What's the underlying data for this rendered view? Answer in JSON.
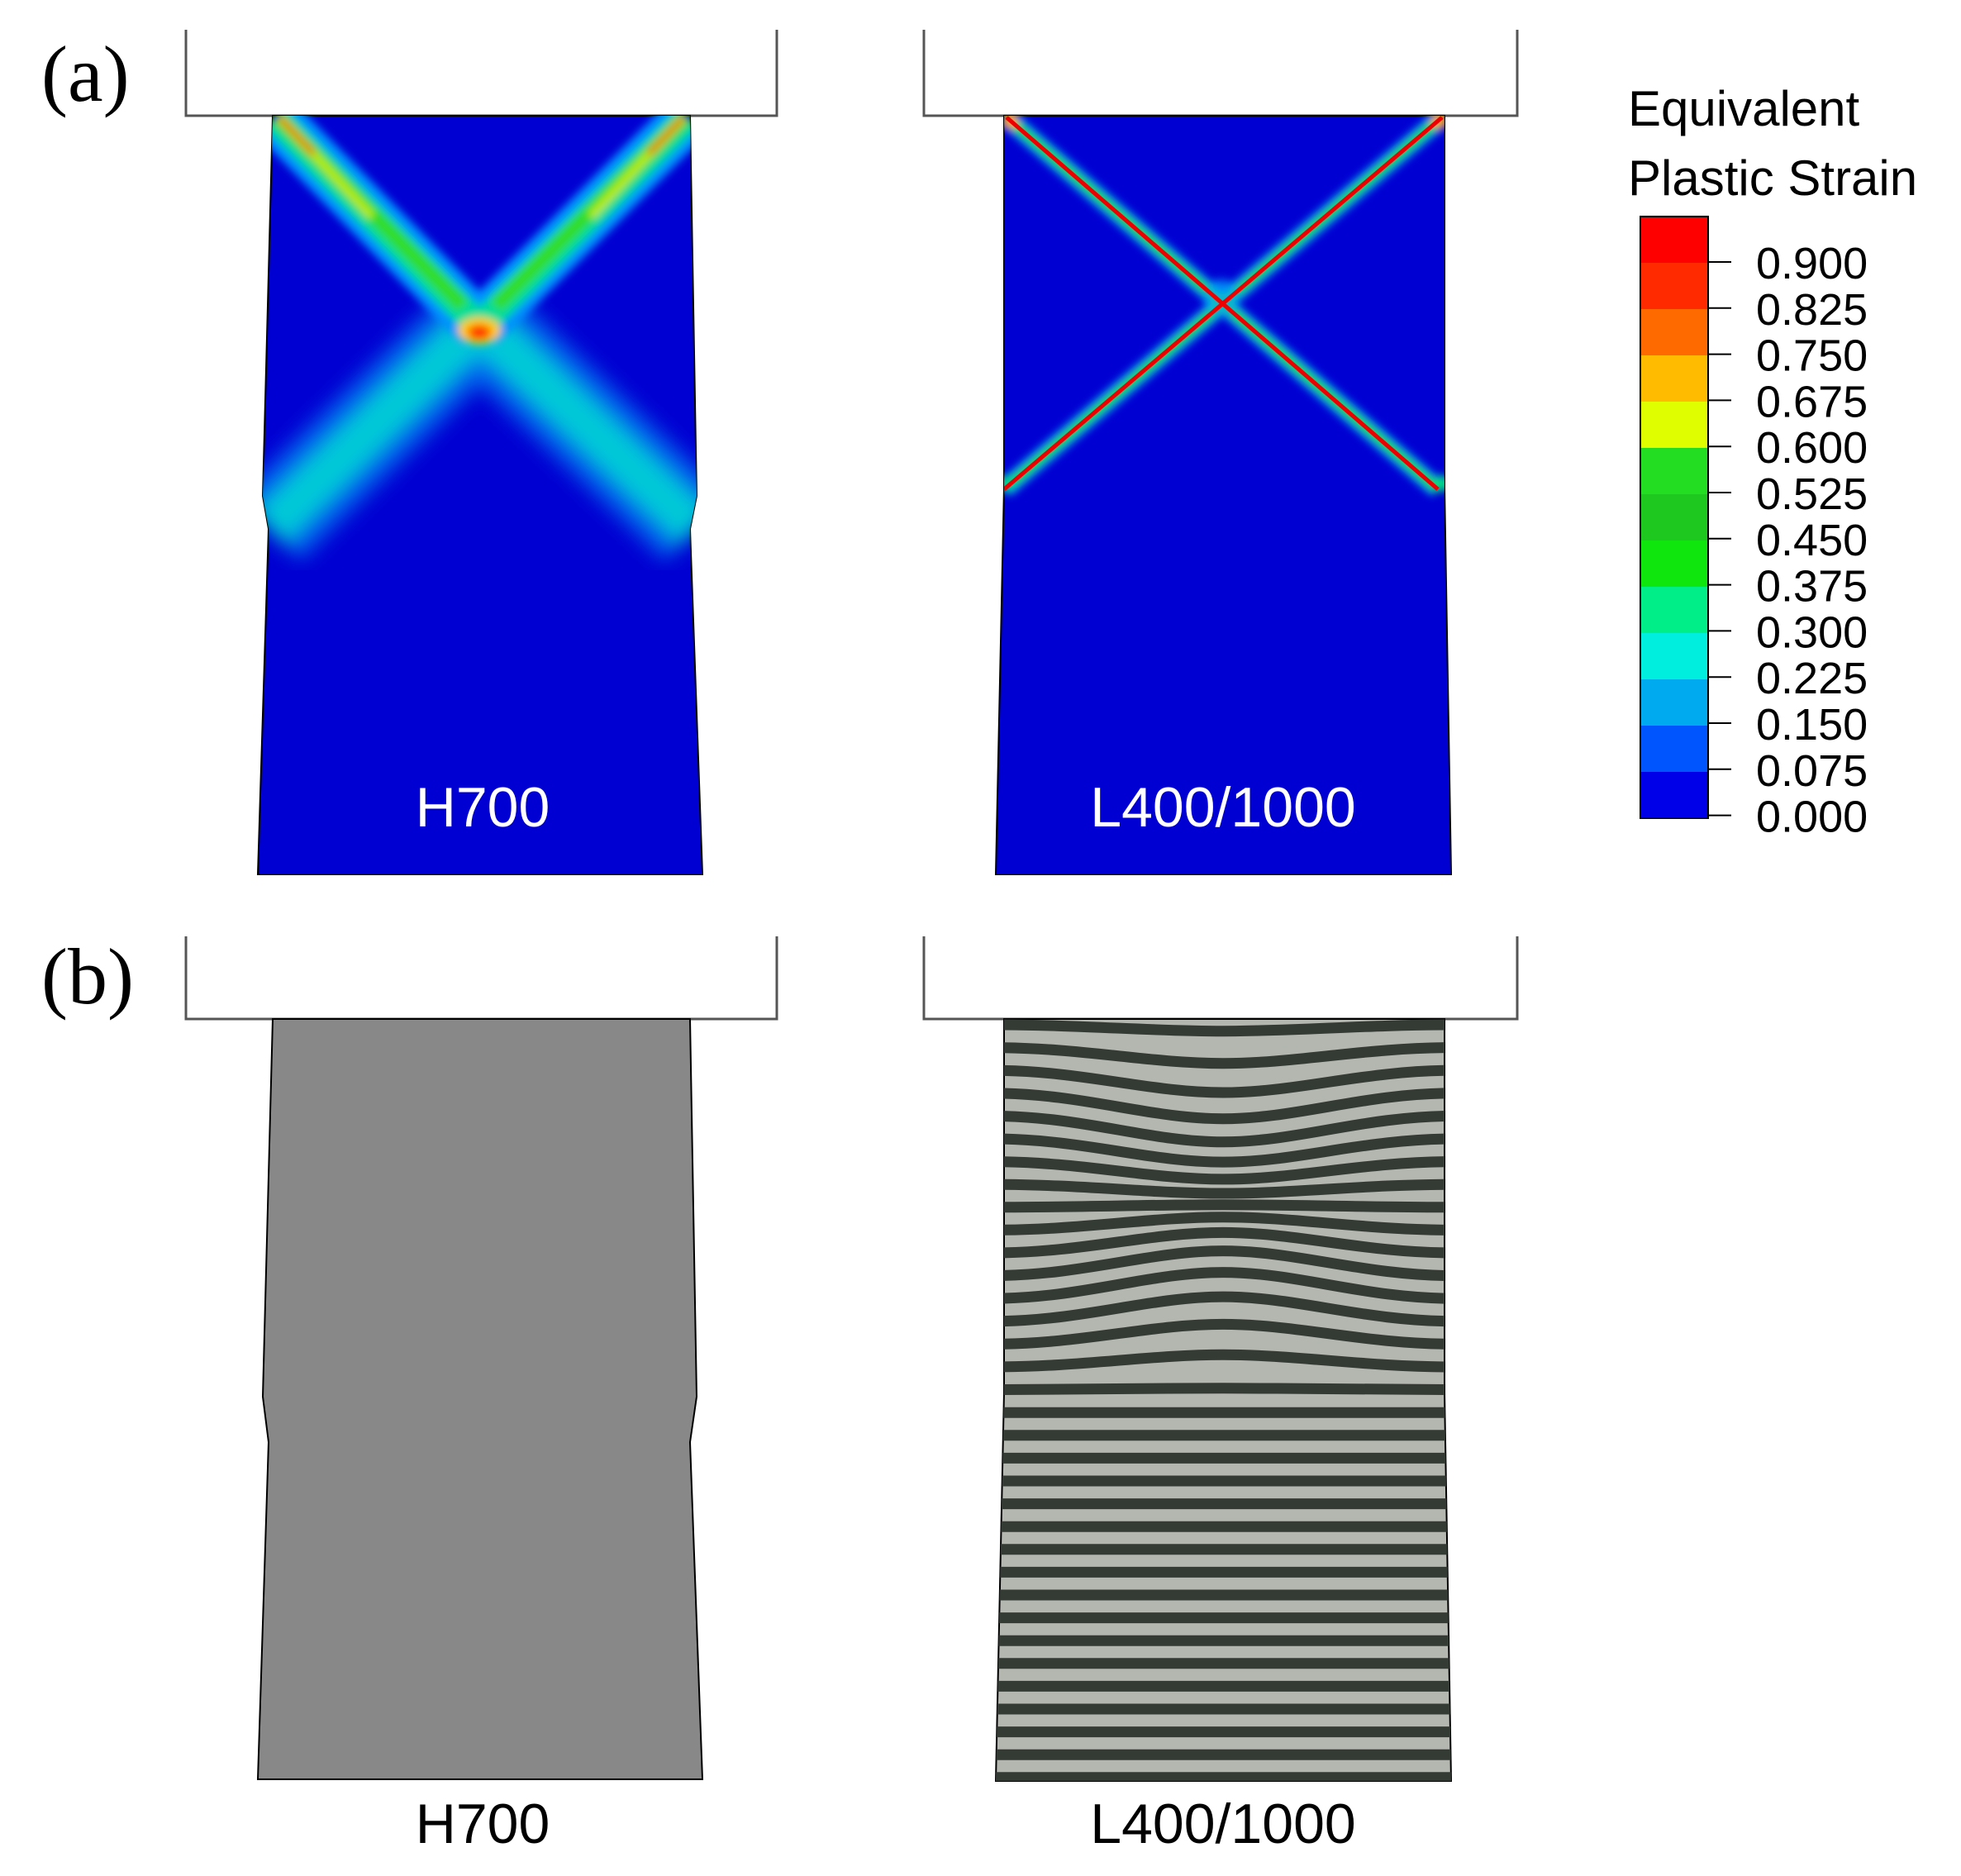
{
  "figure": {
    "panel_a": {
      "label": "(a)",
      "left_caption": "H700",
      "right_caption": "L400/1000"
    },
    "panel_b": {
      "label": "(b)",
      "left_caption": "H700",
      "right_caption": "L400/1000"
    },
    "legend": {
      "title_line1": "Equivalent",
      "title_line2": "Plastic Strain",
      "levels": [
        "0.900",
        "0.825",
        "0.750",
        "0.675",
        "0.600",
        "0.525",
        "0.450",
        "0.375",
        "0.300",
        "0.225",
        "0.150",
        "0.075",
        "0.000"
      ],
      "band_colors": [
        "#ff0000",
        "#ff2a00",
        "#ff6a00",
        "#ffbb00",
        "#dfff00",
        "#22dd22",
        "#1ec81e",
        "#0ee60e",
        "#00ee88",
        "#00eedd",
        "#00aaee",
        "#0055ff",
        "#0000e8"
      ]
    },
    "colors": {
      "contour_background": "#0000d2",
      "homogeneous_gray": "#888888",
      "layer_light": "#b4b6b0",
      "layer_dark": "#343a34",
      "caption_on_contour": "#ffffff",
      "caption_below": "#000000"
    }
  }
}
